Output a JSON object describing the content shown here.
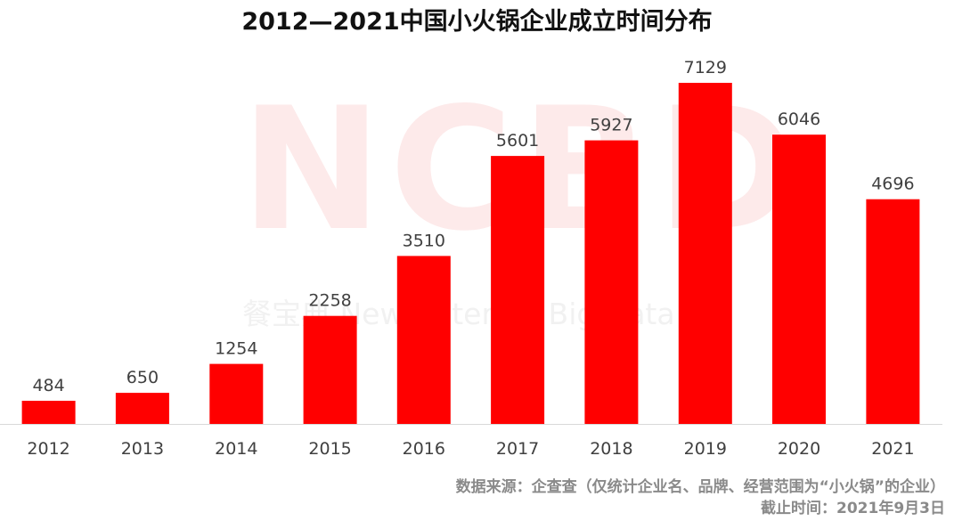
{
  "title": "2012—2021中国小火锅企业成立时间分布",
  "watermark": {
    "logo": "NCBD",
    "subtitle": "餐宝典  New Catering Big Data"
  },
  "source": {
    "line1": "数据来源：企查查（仅统计企业名、品牌、经营范围为“小火锅”的企业）",
    "line2": "截止时间：2021年9月3日"
  },
  "colors": {
    "bar": "#ff0000",
    "axis": "#d9d9d9",
    "label": "#404040"
  },
  "chart_data": {
    "type": "bar",
    "title": "2012—2021中国小火锅企业成立时间分布",
    "xlabel": "",
    "ylabel": "",
    "categories": [
      "2012",
      "2013",
      "2014",
      "2015",
      "2016",
      "2017",
      "2018",
      "2019",
      "2020",
      "2021"
    ],
    "values": [
      484,
      650,
      1254,
      2258,
      3510,
      5601,
      5927,
      7129,
      6046,
      4696
    ],
    "ylim": [
      0,
      7129
    ],
    "grid": false,
    "legend": "none",
    "data_labels": true
  }
}
